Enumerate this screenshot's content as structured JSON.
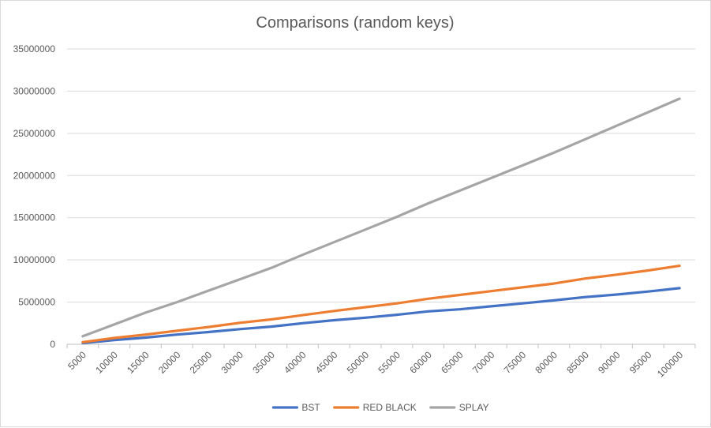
{
  "chart_data": {
    "type": "line",
    "title": "Comparisons (random keys)",
    "xlabel": "",
    "ylabel": "",
    "categories": [
      "5000",
      "10000",
      "15000",
      "20000",
      "25000",
      "30000",
      "35000",
      "40000",
      "45000",
      "50000",
      "55000",
      "60000",
      "65000",
      "70000",
      "75000",
      "80000",
      "85000",
      "90000",
      "95000",
      "100000"
    ],
    "yticks": [
      "0",
      "5000000",
      "10000000",
      "15000000",
      "20000000",
      "25000000",
      "30000000",
      "35000000"
    ],
    "ylim": [
      0,
      35000000
    ],
    "grid": true,
    "legend_position": "bottom",
    "series": [
      {
        "name": "BST",
        "color": "#4472c4",
        "values": [
          150000,
          500000,
          800000,
          1150000,
          1450000,
          1800000,
          2100000,
          2500000,
          2850000,
          3150000,
          3500000,
          3900000,
          4150000,
          4500000,
          4850000,
          5200000,
          5600000,
          5900000,
          6250000,
          6650000
        ]
      },
      {
        "name": "RED BLACK",
        "color": "#ed7d31",
        "values": [
          250000,
          750000,
          1150000,
          1600000,
          2050000,
          2550000,
          2950000,
          3450000,
          3950000,
          4400000,
          4850000,
          5400000,
          5850000,
          6300000,
          6750000,
          7200000,
          7800000,
          8250000,
          8750000,
          9300000
        ]
      },
      {
        "name": "SPLAY",
        "color": "#a5a5a5",
        "values": [
          950000,
          2350000,
          3750000,
          5000000,
          6350000,
          7700000,
          9050000,
          10600000,
          12100000,
          13600000,
          15100000,
          16700000,
          18200000,
          19700000,
          21200000,
          22700000,
          24300000,
          25900000,
          27500000,
          29100000
        ]
      }
    ]
  }
}
